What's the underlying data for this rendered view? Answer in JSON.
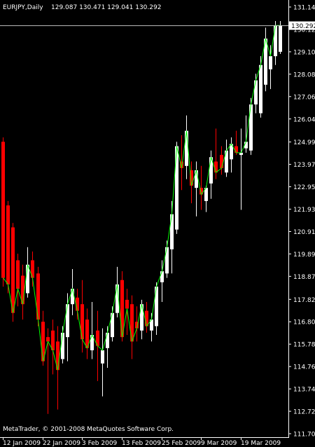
{
  "header": {
    "symbol": "EURJPY,Daily",
    "ohlc": "129.087 130.471 129.041 130.292"
  },
  "copyright": "MetaTrader, © 2001-2008 MetaQuotes Software Corp.",
  "colors": {
    "background": "#000000",
    "axis": "#ffffff",
    "bull": "#ffffff",
    "bear": "#ff0000",
    "line": "#00ff00",
    "price_line": "#c0c0c0",
    "price_tag_bg": "#ffffff",
    "price_tag_text": "#000000"
  },
  "chart_data": {
    "type": "candlestick",
    "ylim": [
      111.7,
      131.14
    ],
    "yticks": [
      "131.140",
      "130.120",
      "129.100",
      "128.080",
      "127.060",
      "126.040",
      "124.990",
      "123.970",
      "122.950",
      "121.930",
      "120.910",
      "119.890",
      "118.870",
      "117.820",
      "116.800",
      "115.780",
      "114.760",
      "113.740",
      "112.720",
      "111.700"
    ],
    "xticks": [
      {
        "label": "12 Jan 2009",
        "index": 0
      },
      {
        "label": "22 Jan 2009",
        "index": 8
      },
      {
        "label": "3 Feb 2009",
        "index": 16
      },
      {
        "label": "13 Feb 2009",
        "index": 24
      },
      {
        "label": "25 Feb 2009",
        "index": 32
      },
      {
        "label": "9 Mar 2009",
        "index": 40
      },
      {
        "label": "19 Mar 2009",
        "index": 48
      }
    ],
    "current_price": "130.292",
    "candles": [
      {
        "o": 125.0,
        "h": 125.2,
        "l": 118.4,
        "c": 118.8
      },
      {
        "o": 122.1,
        "h": 122.3,
        "l": 118.1,
        "c": 118.5
      },
      {
        "o": 121.1,
        "h": 121.3,
        "l": 116.8,
        "c": 117.2
      },
      {
        "o": 119.6,
        "h": 119.9,
        "l": 117.5,
        "c": 118.3
      },
      {
        "o": 118.9,
        "h": 119.4,
        "l": 116.9,
        "c": 117.6
      },
      {
        "o": 118.1,
        "h": 120.2,
        "l": 117.9,
        "c": 119.4
      },
      {
        "o": 119.6,
        "h": 120.0,
        "l": 118.4,
        "c": 118.8
      },
      {
        "o": 119.0,
        "h": 119.3,
        "l": 116.6,
        "c": 116.9
      },
      {
        "o": 116.8,
        "h": 117.3,
        "l": 114.8,
        "c": 115.0
      },
      {
        "o": 116.1,
        "h": 116.5,
        "l": 112.6,
        "c": 115.9
      },
      {
        "o": 116.4,
        "h": 116.9,
        "l": 114.4,
        "c": 115.5
      },
      {
        "o": 115.9,
        "h": 116.6,
        "l": 112.8,
        "c": 114.6
      },
      {
        "o": 115.1,
        "h": 116.6,
        "l": 114.9,
        "c": 116.3
      },
      {
        "o": 116.1,
        "h": 118.1,
        "l": 115.0,
        "c": 117.6
      },
      {
        "o": 117.6,
        "h": 119.2,
        "l": 117.1,
        "c": 118.3
      },
      {
        "o": 117.9,
        "h": 118.3,
        "l": 116.9,
        "c": 117.3
      },
      {
        "o": 117.6,
        "h": 118.7,
        "l": 115.4,
        "c": 116.0
      },
      {
        "o": 116.9,
        "h": 117.4,
        "l": 115.1,
        "c": 115.6
      },
      {
        "o": 115.5,
        "h": 117.7,
        "l": 115.1,
        "c": 116.2
      },
      {
        "o": 116.4,
        "h": 117.3,
        "l": 114.1,
        "c": 115.7
      },
      {
        "o": 114.9,
        "h": 116.5,
        "l": 113.4,
        "c": 115.5
      },
      {
        "o": 115.6,
        "h": 116.6,
        "l": 114.7,
        "c": 116.3
      },
      {
        "o": 116.1,
        "h": 117.5,
        "l": 115.9,
        "c": 117.2
      },
      {
        "o": 117.2,
        "h": 119.3,
        "l": 117.0,
        "c": 118.5
      },
      {
        "o": 118.7,
        "h": 119.1,
        "l": 115.9,
        "c": 116.1
      },
      {
        "o": 117.8,
        "h": 118.3,
        "l": 116.2,
        "c": 117.4
      },
      {
        "o": 117.6,
        "h": 118.0,
        "l": 115.1,
        "c": 115.9
      },
      {
        "o": 116.8,
        "h": 117.5,
        "l": 115.9,
        "c": 116.5
      },
      {
        "o": 116.4,
        "h": 117.8,
        "l": 116.0,
        "c": 117.6
      },
      {
        "o": 117.3,
        "h": 117.7,
        "l": 116.3,
        "c": 116.6
      },
      {
        "o": 116.4,
        "h": 117.2,
        "l": 115.9,
        "c": 116.9
      },
      {
        "o": 116.6,
        "h": 118.6,
        "l": 116.2,
        "c": 118.4
      },
      {
        "o": 118.6,
        "h": 119.6,
        "l": 117.7,
        "c": 119.1
      },
      {
        "o": 119.0,
        "h": 120.5,
        "l": 118.8,
        "c": 120.2
      },
      {
        "o": 120.1,
        "h": 122.3,
        "l": 119.0,
        "c": 121.7
      },
      {
        "o": 121.0,
        "h": 125.0,
        "l": 120.8,
        "c": 124.8
      },
      {
        "o": 124.1,
        "h": 125.3,
        "l": 122.8,
        "c": 123.8
      },
      {
        "o": 123.9,
        "h": 126.2,
        "l": 123.3,
        "c": 125.5
      },
      {
        "o": 123.7,
        "h": 124.1,
        "l": 122.2,
        "c": 123.0
      },
      {
        "o": 122.9,
        "h": 124.1,
        "l": 121.6,
        "c": 123.7
      },
      {
        "o": 122.9,
        "h": 123.9,
        "l": 121.9,
        "c": 122.6
      },
      {
        "o": 122.3,
        "h": 123.0,
        "l": 121.8,
        "c": 122.9
      },
      {
        "o": 123.1,
        "h": 124.6,
        "l": 122.4,
        "c": 124.3
      },
      {
        "o": 124.1,
        "h": 125.6,
        "l": 123.3,
        "c": 123.6
      },
      {
        "o": 124.4,
        "h": 124.8,
        "l": 123.5,
        "c": 123.8
      },
      {
        "o": 123.6,
        "h": 125.1,
        "l": 123.4,
        "c": 124.6
      },
      {
        "o": 124.2,
        "h": 125.2,
        "l": 123.6,
        "c": 124.9
      },
      {
        "o": 124.8,
        "h": 125.5,
        "l": 124.4,
        "c": 124.5
      },
      {
        "o": 124.4,
        "h": 125.6,
        "l": 121.9,
        "c": 124.5
      },
      {
        "o": 124.7,
        "h": 126.2,
        "l": 124.5,
        "c": 125.0
      },
      {
        "o": 124.6,
        "h": 127.0,
        "l": 124.4,
        "c": 126.7
      },
      {
        "o": 126.7,
        "h": 128.1,
        "l": 126.3,
        "c": 127.8
      },
      {
        "o": 126.3,
        "h": 128.9,
        "l": 126.1,
        "c": 128.5
      },
      {
        "o": 127.6,
        "h": 130.2,
        "l": 127.3,
        "c": 129.7
      },
      {
        "o": 128.3,
        "h": 129.4,
        "l": 127.4,
        "c": 128.9
      },
      {
        "o": 128.9,
        "h": 130.5,
        "l": 128.5,
        "c": 130.3
      },
      {
        "o": 129.1,
        "h": 130.5,
        "l": 129.0,
        "c": 130.3
      }
    ],
    "line": [
      118.8,
      118.5,
      117.2,
      118.3,
      117.6,
      119.4,
      118.8,
      116.9,
      115.0,
      115.9,
      115.5,
      114.6,
      116.3,
      117.6,
      118.3,
      117.3,
      116.0,
      115.6,
      116.2,
      115.7,
      115.5,
      116.3,
      117.2,
      118.5,
      116.1,
      117.4,
      115.9,
      116.5,
      117.6,
      116.6,
      116.9,
      118.4,
      119.1,
      120.2,
      121.7,
      124.8,
      123.8,
      125.5,
      123.0,
      123.7,
      122.6,
      122.9,
      124.3,
      123.6,
      123.8,
      124.6,
      124.9,
      124.5,
      124.5,
      125.0,
      126.7,
      127.8,
      128.5,
      129.7,
      128.9,
      130.3,
      130.3
    ]
  }
}
